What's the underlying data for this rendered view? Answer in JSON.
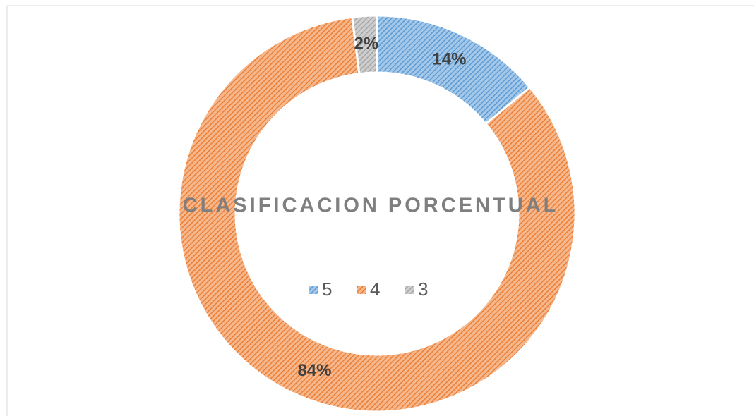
{
  "chart_data": {
    "type": "donut",
    "title": "CLASIFICACION PORCENTUAL",
    "categories": [
      "5",
      "4",
      "3"
    ],
    "values": [
      14,
      84,
      2
    ],
    "value_labels": [
      "14%",
      "84%",
      "2%"
    ],
    "colors": [
      "#5b9bd5",
      "#ed7d31",
      "#a5a5a5"
    ],
    "legend": "center"
  }
}
